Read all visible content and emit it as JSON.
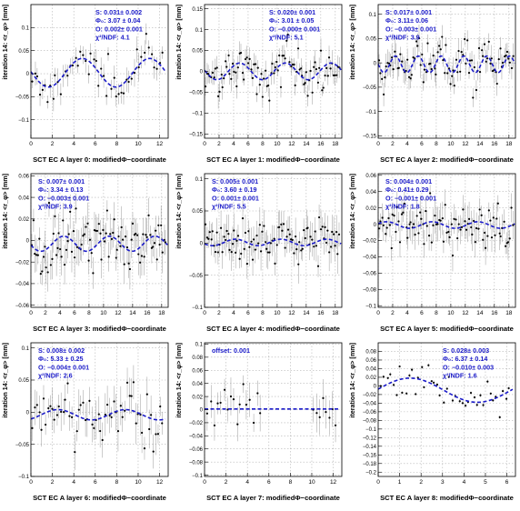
{
  "page": {
    "title": ""
  },
  "colors": {
    "fit": "#1a1ac8",
    "points": "#000000",
    "errors": "#9a9a9a",
    "grid": "#b4b4b4",
    "axes": "#000000",
    "background": "#ffffff"
  },
  "chart_data": [
    {
      "type": "scatter",
      "title": "",
      "xlabel": "SCT EC A layer 0: modifiedΦ−coordinate",
      "ylabel": "iteration 14: <r_φ> [mm]",
      "xlim": [
        0,
        12.8
      ],
      "ylim": [
        -0.14,
        0.15
      ],
      "xticks": [
        0,
        2,
        4,
        6,
        8,
        10,
        12
      ],
      "yticks": [
        -0.1,
        -0.05,
        0,
        0.05,
        0.1
      ],
      "ytick_labels": [
        "−0.1",
        "−0.05",
        "0",
        "0.05",
        "0.1"
      ],
      "grid": true,
      "fit": {
        "amplitude": 0.031,
        "phase": 3.07,
        "offset": 0.002,
        "periods": 2,
        "xmax": 12.566
      },
      "stats": [
        "S: 0.031± 0.002",
        "Φ₀: 3.07 ± 0.04",
        "O: 0.002± 0.001",
        "χ²/NDF: 4.1"
      ],
      "stats_position": "top-right",
      "points": {
        "n": 52,
        "noise": 0.018,
        "err": 0.022,
        "seed": 11,
        "pattern": "sampled",
        "xmin": 0.1,
        "xmax": 12.4
      }
    },
    {
      "type": "scatter",
      "title": "",
      "xlabel": "SCT EC A layer 1: modifiedΦ−coordinate",
      "ylabel": "iteration 14: <r_φ> [mm]",
      "xlim": [
        0,
        18.9
      ],
      "ylim": [
        -0.16,
        0.16
      ],
      "xticks": [
        0,
        2,
        4,
        6,
        8,
        10,
        12,
        14,
        16,
        18
      ],
      "yticks": [
        -0.15,
        -0.1,
        -0.05,
        0,
        0.05,
        0.1,
        0.15
      ],
      "ytick_labels": [
        "−0.15",
        "−0.1",
        "−0.05",
        "0",
        "0.05",
        "0.1",
        "0.15"
      ],
      "grid": true,
      "fit": {
        "amplitude": 0.02,
        "phase": 3.01,
        "offset": 0.0,
        "periods": 3,
        "xmax": 18.85
      },
      "stats": [
        "S: 0.020± 0.001",
        "Φ₀: 3.01 ± 0.05",
        "O: −0.000± 0.001",
        "χ²/NDF: 5.1"
      ],
      "stats_position": "top-right",
      "points": {
        "n": 95,
        "noise": 0.028,
        "err": 0.022,
        "seed": 23,
        "pattern": "sampled",
        "xmin": 0.1,
        "xmax": 18.7
      }
    },
    {
      "type": "scatter",
      "title": "",
      "xlabel": "SCT EC A layer 2: modifiedΦ−coordinate",
      "ylabel": "iteration 14: <r_φ> [mm]",
      "xlim": [
        0,
        18.9
      ],
      "ylim": [
        -0.155,
        0.12
      ],
      "xticks": [
        0,
        2,
        4,
        6,
        8,
        10,
        12,
        14,
        16,
        18
      ],
      "yticks": [
        -0.15,
        -0.1,
        -0.05,
        0,
        0.05,
        0.1
      ],
      "ytick_labels": [
        "−0.15",
        "−0.1",
        "−0.05",
        "0",
        "0.05",
        "0.1"
      ],
      "grid": true,
      "fit": {
        "amplitude": 0.017,
        "phase": 3.11,
        "offset": -0.003,
        "periods": 6,
        "xmax": 18.85
      },
      "stats": [
        "S: 0.017± 0.001",
        "Φ₀: 3.11± 0.06",
        "O: −0.003± 0.001",
        "χ²/NDF: 3.9"
      ],
      "stats_position": "top-left",
      "points": {
        "n": 95,
        "noise": 0.022,
        "err": 0.02,
        "seed": 37,
        "pattern": "sampled",
        "xmin": 0.1,
        "xmax": 18.7
      }
    },
    {
      "type": "scatter",
      "title": "",
      "xlabel": "SCT EC A layer 3: modifiedΦ−coordinate",
      "ylabel": "iteration 14: <r_φ> [mm]",
      "xlim": [
        0,
        18.9
      ],
      "ylim": [
        -0.062,
        0.062
      ],
      "xticks": [
        0,
        2,
        4,
        6,
        8,
        10,
        12,
        14,
        16,
        18
      ],
      "yticks": [
        -0.06,
        -0.04,
        -0.02,
        0,
        0.02,
        0.04,
        0.06
      ],
      "ytick_labels": [
        "−0.06",
        "−0.04",
        "−0.02",
        "0",
        "0.02",
        "0.04",
        "0.06"
      ],
      "grid": true,
      "fit": {
        "amplitude": 0.007,
        "phase": 3.34,
        "offset": -0.003,
        "periods": 3,
        "xmax": 18.85
      },
      "stats": [
        "S: 0.007± 0.001",
        "Φ₀: 3.34 ± 0.13",
        "O: −0.003± 0.001",
        "χ²/NDF: 3.9"
      ],
      "stats_position": "top-left",
      "points": {
        "n": 95,
        "noise": 0.016,
        "err": 0.014,
        "seed": 41,
        "pattern": "sampled",
        "xmin": 0.1,
        "xmax": 18.7
      }
    },
    {
      "type": "scatter",
      "title": "",
      "xlabel": "SCT EC A layer 4: modifiedΦ−coordinate",
      "ylabel": "iteration 14: <r_φ> [mm]",
      "xlim": [
        0,
        18.9
      ],
      "ylim": [
        -0.1,
        0.108
      ],
      "xticks": [
        0,
        2,
        4,
        6,
        8,
        10,
        12,
        14,
        16,
        18
      ],
      "yticks": [
        -0.1,
        -0.05,
        0,
        0.05,
        0.1
      ],
      "ytick_labels": [
        "−0.1",
        "−0.05",
        "0",
        "0.05",
        "0.1"
      ],
      "grid": true,
      "fit": {
        "amplitude": 0.005,
        "phase": 3.6,
        "offset": 0.001,
        "periods": 3,
        "xmax": 18.85
      },
      "stats": [
        "S: 0.005± 0.001",
        "Φ₀: 3.60 ± 0.19",
        "O: 0.001± 0.001",
        "χ²/NDF: 5.5"
      ],
      "stats_position": "top-left",
      "points": {
        "n": 95,
        "noise": 0.018,
        "err": 0.022,
        "seed": 53,
        "pattern": "sampled",
        "xmin": 0.1,
        "xmax": 18.7
      }
    },
    {
      "type": "scatter",
      "title": "",
      "xlabel": "SCT EC A layer 5: modifiedΦ−coordinate",
      "ylabel": "iteration 14: <r_φ> [mm]",
      "xlim": [
        0,
        18.9
      ],
      "ylim": [
        -0.102,
        0.062
      ],
      "xticks": [
        0,
        2,
        4,
        6,
        8,
        10,
        12,
        14,
        16,
        18
      ],
      "yticks": [
        -0.1,
        -0.08,
        -0.06,
        -0.04,
        -0.02,
        0,
        0.02,
        0.04,
        0.06
      ],
      "ytick_labels": [
        "−0.1",
        "−0.08",
        "−0.06",
        "−0.04",
        "−0.02",
        "0",
        "0.02",
        "0.04",
        "0.06"
      ],
      "grid": true,
      "fit": {
        "amplitude": 0.004,
        "phase": 0.41,
        "offset": -0.001,
        "periods": 3,
        "xmax": 18.85
      },
      "stats": [
        "S: 0.004± 0.001",
        "Φ₀: 0.41± 0.29",
        "O: −0.001± 0.001",
        "χ²/NDF: 1.8"
      ],
      "stats_position": "top-left",
      "points": {
        "n": 90,
        "noise": 0.013,
        "err": 0.016,
        "seed": 67,
        "pattern": "sampled",
        "xmin": 0.1,
        "xmax": 18.7
      }
    },
    {
      "type": "scatter",
      "title": "",
      "xlabel": "SCT EC A layer 6: modifiedΦ−coordinate",
      "ylabel": "iteration 14: <r_φ> [mm]",
      "xlim": [
        0,
        12.8
      ],
      "ylim": [
        -0.1,
        0.108
      ],
      "xticks": [
        0,
        2,
        4,
        6,
        8,
        10,
        12
      ],
      "yticks": [
        -0.1,
        -0.05,
        0,
        0.05,
        0.1
      ],
      "ytick_labels": [
        "−0.1",
        "−0.05",
        "0",
        "0.05",
        "0.1"
      ],
      "grid": true,
      "fit": {
        "amplitude": 0.008,
        "phase": 5.33,
        "offset": -0.004,
        "periods": 2,
        "xmax": 12.566
      },
      "stats": [
        "S: 0.008± 0.002",
        "Φ₀: 5.33 ± 0.25",
        "O: −0.004± 0.001",
        "χ²/NDF: 2.6"
      ],
      "stats_position": "top-left",
      "points": {
        "n": 60,
        "noise": 0.02,
        "err": 0.024,
        "seed": 71,
        "pattern": "sampled",
        "xmin": 0.1,
        "xmax": 12.4
      }
    },
    {
      "type": "scatter",
      "title": "",
      "xlabel": "SCT EC A layer 7: modifiedΦ−coordinate",
      "ylabel": "iteration 14: <r_φ> [mm]",
      "xlim": [
        0,
        12.8
      ],
      "ylim": [
        -0.102,
        0.102
      ],
      "xticks": [
        0,
        2,
        4,
        6,
        8,
        10,
        12
      ],
      "yticks": [
        -0.1,
        -0.08,
        -0.06,
        -0.04,
        -0.02,
        0,
        0.02,
        0.04,
        0.06,
        0.08,
        0.1
      ],
      "ytick_labels": [
        "−0.1",
        "−0.08",
        "−0.06",
        "−0.04",
        "−0.02",
        "0",
        "0.02",
        "0.04",
        "0.06",
        "0.08",
        "0.1"
      ],
      "grid": true,
      "fit": {
        "amplitude": 0.0,
        "phase": 0,
        "offset": 0.001,
        "periods": 1,
        "xmax": 12.566
      },
      "stats": [
        "offset:  0.001"
      ],
      "stats_position": "top-left",
      "points": {
        "n": 40,
        "noise": 0.018,
        "err": 0.022,
        "seed": 83,
        "pattern": "sampled",
        "xmin": 0.2,
        "xmax": 12.5,
        "gap": [
          5.3,
          10.0
        ]
      }
    },
    {
      "type": "scatter",
      "title": "",
      "xlabel": "SCT EC A layer 8: modifiedΦ−coordinate",
      "ylabel": "iteration 14: <r_φ> [mm]",
      "xlim": [
        0,
        6.4
      ],
      "ylim": [
        -0.21,
        0.1
      ],
      "xticks": [
        0,
        1,
        2,
        3,
        4,
        5,
        6
      ],
      "yticks": [
        -0.2,
        -0.18,
        -0.16,
        -0.14,
        -0.12,
        -0.1,
        -0.08,
        -0.06,
        -0.04,
        -0.02,
        0,
        0.02,
        0.04,
        0.06,
        0.08
      ],
      "ytick_labels": [
        "−0.2",
        "−0.18",
        "−0.16",
        "−0.14",
        "−0.12",
        "−0.1",
        "−0.08",
        "−0.06",
        "−0.04",
        "−0.02",
        "0",
        "0.02",
        "0.04",
        "0.06",
        "0.08"
      ],
      "grid": true,
      "fit": {
        "amplitude": 0.028,
        "phase": 6.37,
        "offset": -0.01,
        "periods": 1,
        "xmax": 6.283
      },
      "stats": [
        "S: 0.028± 0.003",
        "Φ₀: 6.37 ± 0.14",
        "O: −0.010± 0.003",
        "χ²/NDF: 1.6"
      ],
      "stats_position": "top-right",
      "points": {
        "n": 42,
        "noise": 0.02,
        "err": 0.004,
        "seed": 97,
        "pattern": "sampled",
        "xmin": 0.1,
        "xmax": 6.2
      }
    }
  ]
}
